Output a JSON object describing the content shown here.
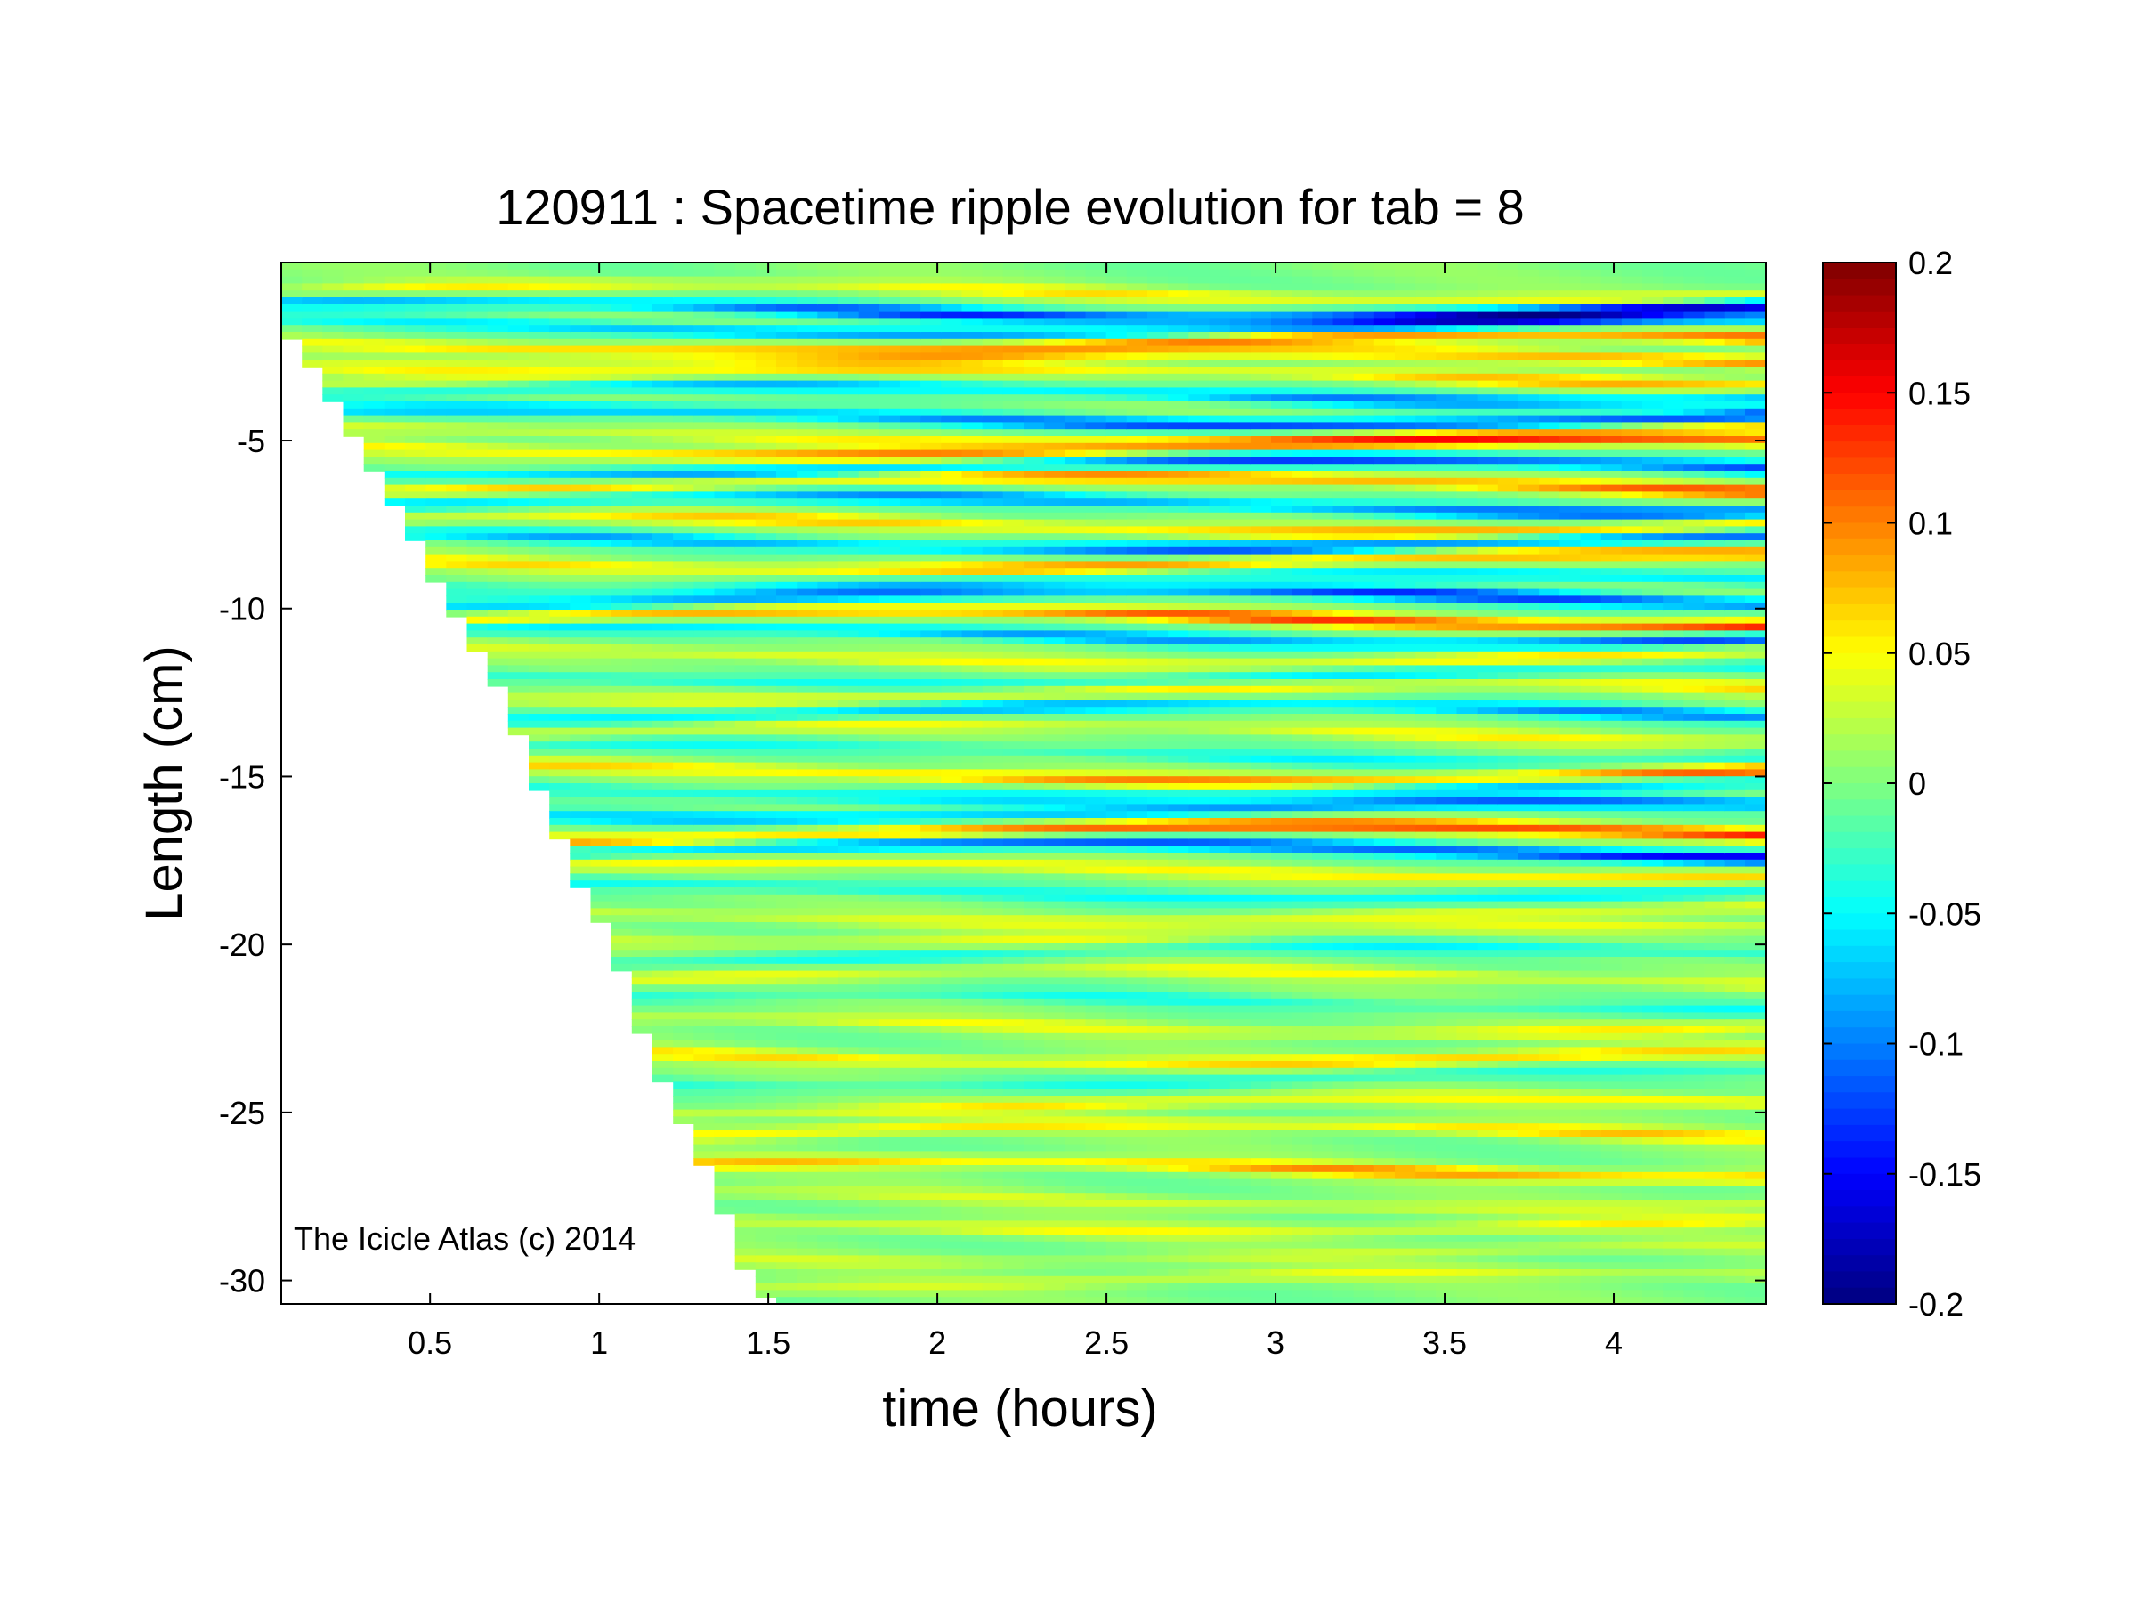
{
  "chart_data": {
    "type": "heatmap",
    "title": "120911 : Spacetime ripple evolution for tab = 8",
    "xlabel": "time (hours)",
    "ylabel": "Length (cm)",
    "xlim": [
      0.06,
      4.45
    ],
    "ylim": [
      -30.7,
      0.3
    ],
    "xticks": [
      0.5,
      1,
      1.5,
      2,
      2.5,
      3,
      3.5,
      4
    ],
    "xtick_labels": [
      "0.5",
      "1",
      "1.5",
      "2",
      "2.5",
      "3",
      "3.5",
      "4"
    ],
    "yticks": [
      -5,
      -10,
      -15,
      -20,
      -25,
      -30
    ],
    "ytick_labels": [
      "-5",
      "-10",
      "-15",
      "-20",
      "-25",
      "-30"
    ],
    "colormap": "jet",
    "clim": [
      -0.2,
      0.2
    ],
    "colorbar_ticks": [
      0.2,
      0.15,
      0.1,
      0.05,
      0,
      -0.05,
      -0.1,
      -0.15,
      -0.2
    ],
    "colorbar_tick_labels": [
      "0.2",
      "0.15",
      "0.1",
      "0.05",
      "0",
      "-0.05",
      "-0.1",
      "-0.15",
      "-0.2"
    ],
    "data_boundary": {
      "description_of": "lower edge of data region: length reached at each time",
      "t": [
        0.06,
        0.13,
        0.2,
        0.27,
        0.34,
        0.41,
        0.48,
        0.54,
        0.61,
        0.68,
        0.75,
        0.82,
        0.88,
        0.95,
        1.02,
        1.09,
        1.15,
        1.22,
        1.29,
        1.36,
        1.42,
        1.49,
        1.6
      ],
      "length": [
        -1.6,
        -2.3,
        -3.6,
        -4.8,
        -6.0,
        -7.2,
        -8.4,
        -9.6,
        -10.8,
        -12.0,
        -13.4,
        -15.3,
        -16.8,
        -18.5,
        -19.6,
        -21.5,
        -23.3,
        -24.8,
        -26.0,
        -27.7,
        -29.4,
        -30.5,
        -30.7
      ]
    },
    "bands": [
      {
        "length": -0.6,
        "amp": 0.06,
        "grow": 0.2
      },
      {
        "length": -1.1,
        "amp": -0.19,
        "grow": 0.8
      },
      {
        "length": -1.6,
        "amp": -0.14,
        "grow": 0.7
      },
      {
        "length": -2.1,
        "amp": 0.13,
        "grow": 0.7
      },
      {
        "length": -2.6,
        "amp": 0.1,
        "grow": 0.7
      },
      {
        "length": -3.1,
        "amp": 0.08,
        "grow": 0.6
      },
      {
        "length": -3.6,
        "amp": -0.11,
        "grow": 0.6
      },
      {
        "length": -4.3,
        "amp": -0.17,
        "grow": 0.9
      },
      {
        "length": -4.8,
        "amp": 0.07,
        "grow": 0.5
      },
      {
        "length": -5.2,
        "amp": 0.14,
        "grow": 0.8
      },
      {
        "length": -5.8,
        "amp": -0.15,
        "grow": 0.8
      },
      {
        "length": -6.3,
        "amp": 0.13,
        "grow": 0.8
      },
      {
        "length": -6.9,
        "amp": -0.13,
        "grow": 0.7
      },
      {
        "length": -7.5,
        "amp": 0.1,
        "grow": 0.6
      },
      {
        "length": -8.0,
        "amp": -0.14,
        "grow": 0.7
      },
      {
        "length": -8.6,
        "amp": 0.11,
        "grow": 0.6
      },
      {
        "length": -9.2,
        "amp": -0.07,
        "grow": 0.5
      },
      {
        "length": -9.7,
        "amp": -0.15,
        "grow": 0.8
      },
      {
        "length": -10.3,
        "amp": 0.16,
        "grow": 0.9
      },
      {
        "length": -10.8,
        "amp": -0.12,
        "grow": 0.7
      },
      {
        "length": -11.4,
        "amp": 0.06,
        "grow": 0.4
      },
      {
        "length": -12.0,
        "amp": -0.06,
        "grow": 0.4
      },
      {
        "length": -12.5,
        "amp": 0.06,
        "grow": 0.4
      },
      {
        "length": -13.1,
        "amp": -0.1,
        "grow": 0.5
      },
      {
        "length": -13.7,
        "amp": 0.05,
        "grow": 0.3
      },
      {
        "length": -14.3,
        "amp": -0.05,
        "grow": 0.3
      },
      {
        "length": -14.9,
        "amp": 0.12,
        "grow": 0.7
      },
      {
        "length": -15.4,
        "amp": -0.08,
        "grow": 0.5
      },
      {
        "length": -16.0,
        "amp": -0.13,
        "grow": 0.8
      },
      {
        "length": -16.7,
        "amp": 0.17,
        "grow": 0.9
      },
      {
        "length": -17.2,
        "amp": -0.17,
        "grow": 0.9
      },
      {
        "length": -17.8,
        "amp": 0.07,
        "grow": 0.4
      },
      {
        "length": -18.4,
        "amp": -0.06,
        "grow": 0.3
      },
      {
        "length": -19.1,
        "amp": 0.05,
        "grow": 0.3
      },
      {
        "length": -19.7,
        "amp": 0.04,
        "grow": 0.2
      },
      {
        "length": -20.3,
        "amp": -0.05,
        "grow": 0.3
      },
      {
        "length": -21.0,
        "amp": 0.05,
        "grow": 0.3
      },
      {
        "length": -21.7,
        "amp": -0.04,
        "grow": 0.2
      },
      {
        "length": -22.4,
        "amp": 0.05,
        "grow": 0.3
      },
      {
        "length": -23.3,
        "amp": 0.08,
        "grow": 0.4
      },
      {
        "length": -24.0,
        "amp": -0.04,
        "grow": 0.2
      },
      {
        "length": -24.8,
        "amp": 0.06,
        "grow": 0.3
      },
      {
        "length": -25.6,
        "amp": 0.07,
        "grow": 0.3
      },
      {
        "length": -26.7,
        "amp": 0.1,
        "grow": 0.5
      },
      {
        "length": -27.6,
        "amp": 0.04,
        "grow": 0.2
      },
      {
        "length": -28.3,
        "amp": 0.05,
        "grow": 0.2
      },
      {
        "length": -29.2,
        "amp": 0.03,
        "grow": 0.2
      },
      {
        "length": -30.0,
        "amp": 0.04,
        "grow": 0.2
      }
    ],
    "annotation": "The Icicle Atlas (c) 2014"
  }
}
